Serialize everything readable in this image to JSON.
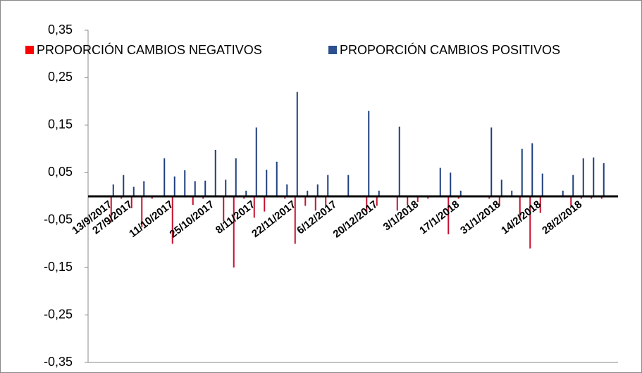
{
  "chart_data": {
    "type": "bar",
    "categories": [
      "13/9/2017",
      null,
      "27/9/2017",
      null,
      null,
      null,
      "11/10/2017",
      null,
      null,
      null,
      "25/10/2017",
      null,
      null,
      null,
      "8/11/2017",
      null,
      null,
      null,
      "22/11/2017",
      null,
      null,
      null,
      "6/12/2017",
      null,
      null,
      null,
      "20/12/2017",
      null,
      null,
      null,
      "3/1/2018",
      null,
      null,
      null,
      "17/1/2018",
      null,
      null,
      null,
      "31/1/2018",
      null,
      null,
      null,
      "14/2/2018",
      null,
      null,
      null,
      "28/2/2018",
      null,
      null,
      null
    ],
    "series": [
      {
        "name": "PROPORCIÓN CAMBIOS NEGATIVOS",
        "color": "#c8102e",
        "values": [
          -0.055,
          -0.005,
          -0.025,
          -0.065,
          -0.005,
          null,
          -0.1,
          null,
          -0.018,
          -0.005,
          null,
          -0.052,
          -0.15,
          -0.005,
          -0.045,
          -0.032,
          null,
          -0.005,
          -0.1,
          -0.02,
          -0.03,
          -0.02,
          null,
          null,
          null,
          -0.032,
          -0.02,
          null,
          -0.03,
          -0.018,
          -0.012,
          -0.005,
          null,
          -0.08,
          -0.005,
          null,
          null,
          -0.005,
          -0.02,
          null,
          -0.05,
          -0.11,
          -0.035,
          null,
          null,
          -0.02,
          -0.005,
          -0.005,
          -0.005,
          null
        ]
      },
      {
        "name": "PROPORCIÓN CAMBIOS POSITIVOS",
        "color": "#1f3f7f",
        "values": [
          0.025,
          0.045,
          0.02,
          0.032,
          null,
          0.08,
          0.042,
          0.055,
          0.032,
          0.033,
          0.098,
          0.035,
          0.08,
          0.012,
          0.145,
          0.056,
          0.073,
          0.025,
          0.22,
          0.012,
          0.025,
          0.045,
          null,
          0.045,
          null,
          0.18,
          0.012,
          null,
          0.147,
          null,
          null,
          null,
          0.06,
          0.05,
          0.012,
          null,
          null,
          0.145,
          0.035,
          0.012,
          0.1,
          0.112,
          0.048,
          null,
          0.012,
          0.045,
          0.08,
          0.082,
          0.07,
          null
        ]
      }
    ],
    "ylim": [
      -0.35,
      0.35
    ],
    "yticks": [
      {
        "value": 0.35,
        "label": "0,35"
      },
      {
        "value": 0.25,
        "label": "0,25"
      },
      {
        "value": 0.15,
        "label": "0,15"
      },
      {
        "value": 0.05,
        "label": "0,05"
      },
      {
        "value": -0.05,
        "label": "-0,05"
      },
      {
        "value": -0.15,
        "label": "-0,15"
      },
      {
        "value": -0.25,
        "label": "-0,25"
      },
      {
        "value": -0.35,
        "label": "-0,35"
      }
    ],
    "grid": false,
    "legend": "top"
  }
}
